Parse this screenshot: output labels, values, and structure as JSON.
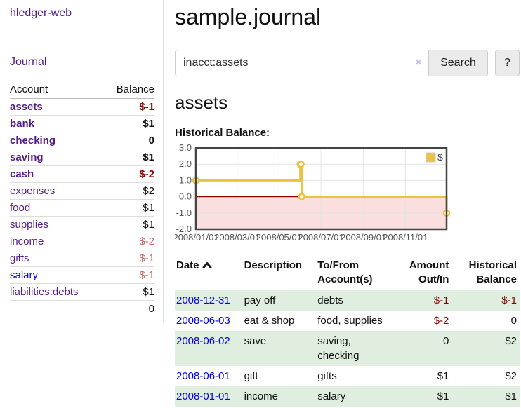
{
  "colors": {
    "link_purple": "#551a8b",
    "link_blue": "#0000ee",
    "negative": "#8b0000",
    "negative_muted": "#c56b6b",
    "row_green": "#dfeedf",
    "series_yellow": "#edc240",
    "grid": "#e4e4e4",
    "frame": "#444444",
    "zero_line": "#8b0000",
    "negative_region": "#fbdede",
    "tick_text": "#545454"
  },
  "sidebar": {
    "app_title": "hledger-web",
    "journal_link": "Journal",
    "accounts_table": {
      "col_account": "Account",
      "col_balance": "Balance",
      "items": [
        {
          "name": "assets",
          "balance": "$-1",
          "indent": 1,
          "bold": true,
          "balance_style": "neg",
          "link_style": "purple"
        },
        {
          "name": "bank",
          "balance": "$1",
          "indent": 2,
          "bold": true,
          "balance_style": "pos",
          "link_style": "purple"
        },
        {
          "name": "checking",
          "balance": "0",
          "indent": 3,
          "bold": true,
          "balance_style": "pos",
          "link_style": "purple"
        },
        {
          "name": "saving",
          "balance": "$1",
          "indent": 3,
          "bold": true,
          "balance_style": "pos",
          "link_style": "purple"
        },
        {
          "name": "cash",
          "balance": "$-2",
          "indent": 2,
          "bold": true,
          "balance_style": "neg",
          "link_style": "purple"
        },
        {
          "name": "expenses",
          "balance": "$2",
          "indent": 1,
          "bold": false,
          "balance_style": "pos",
          "link_style": "purple"
        },
        {
          "name": "food",
          "balance": "$1",
          "indent": 2,
          "bold": false,
          "balance_style": "pos",
          "link_style": "purple"
        },
        {
          "name": "supplies",
          "balance": "$1",
          "indent": 2,
          "bold": false,
          "balance_style": "pos",
          "link_style": "purple"
        },
        {
          "name": "income",
          "balance": "$-2",
          "indent": 1,
          "bold": false,
          "balance_style": "neg-muted",
          "link_style": "purple"
        },
        {
          "name": "gifts",
          "balance": "$-1",
          "indent": 2,
          "bold": false,
          "balance_style": "neg-muted",
          "link_style": "purple"
        },
        {
          "name": "salary",
          "balance": "$-1",
          "indent": 2,
          "bold": false,
          "balance_style": "neg-muted",
          "link_style": "blue"
        },
        {
          "name": "liabilities:debts",
          "balance": "$1",
          "indent": 1,
          "bold": false,
          "balance_style": "pos",
          "link_style": "purple"
        }
      ],
      "total": "0"
    }
  },
  "header": {
    "title": "sample.journal"
  },
  "search": {
    "value": "inacct:assets",
    "clear_icon": "×",
    "button_label": "Search",
    "help_label": "?"
  },
  "account_page": {
    "heading": "assets",
    "chart_title": "Historical Balance:"
  },
  "chart_data": {
    "type": "line",
    "style": "step",
    "legend": [
      {
        "label": "$",
        "color": "#edc240"
      }
    ],
    "legend_position": "top-right",
    "series": [
      {
        "name": "$",
        "points": [
          {
            "date": "2008-01-01",
            "value": 1
          },
          {
            "date": "2008-06-01",
            "value": 2
          },
          {
            "date": "2008-06-02",
            "value": 2
          },
          {
            "date": "2008-06-03",
            "value": 0
          },
          {
            "date": "2008-12-31",
            "value": -1
          }
        ]
      }
    ],
    "xlim": [
      "2008-01-01",
      "2008-12-31"
    ],
    "ylim": [
      -2,
      3
    ],
    "yticks": [
      {
        "label": "3.0",
        "value": 3
      },
      {
        "label": "2.0",
        "value": 2
      },
      {
        "label": "1.0",
        "value": 1
      },
      {
        "label": "0.0",
        "value": 0
      },
      {
        "label": "-1.0",
        "value": -1
      },
      {
        "label": "-2.0",
        "value": -2
      }
    ],
    "xticks": [
      {
        "label": "2008/01/01",
        "date": "2008-01-01"
      },
      {
        "label": "2008/03/01",
        "date": "2008-03-01"
      },
      {
        "label": "2008/05/01",
        "date": "2008-05-01"
      },
      {
        "label": "2008/07/01",
        "date": "2008-07-01"
      },
      {
        "label": "2008/09/01",
        "date": "2008-09-01"
      },
      {
        "label": "2008/11/01",
        "date": "2008-11-01"
      }
    ],
    "grid": true,
    "zero_line": true,
    "negative_region_shaded": true
  },
  "register": {
    "headers": {
      "date": "Date",
      "description": "Description",
      "accounts": "To/From Account(s)",
      "amount": "Amount Out/In",
      "balance": "Historical Balance"
    },
    "sort_icon": "chevron-up",
    "rows": [
      {
        "date": "2008-12-31",
        "description": "pay off",
        "accounts": "debts",
        "amount": "$-1",
        "amount_neg": true,
        "balance": "$-1",
        "balance_neg": true,
        "stripe": true
      },
      {
        "date": "2008-06-03",
        "description": "eat & shop",
        "accounts": "food, supplies",
        "amount": "$-2",
        "amount_neg": true,
        "balance": "0",
        "balance_neg": false,
        "stripe": false
      },
      {
        "date": "2008-06-02",
        "description": "save",
        "accounts": "saving, checking",
        "amount": "0",
        "amount_neg": false,
        "balance": "$2",
        "balance_neg": false,
        "stripe": true
      },
      {
        "date": "2008-06-01",
        "description": "gift",
        "accounts": "gifts",
        "amount": "$1",
        "amount_neg": false,
        "balance": "$2",
        "balance_neg": false,
        "stripe": false
      },
      {
        "date": "2008-01-01",
        "description": "income",
        "accounts": "salary",
        "amount": "$1",
        "amount_neg": false,
        "balance": "$1",
        "balance_neg": false,
        "stripe": true
      }
    ]
  }
}
